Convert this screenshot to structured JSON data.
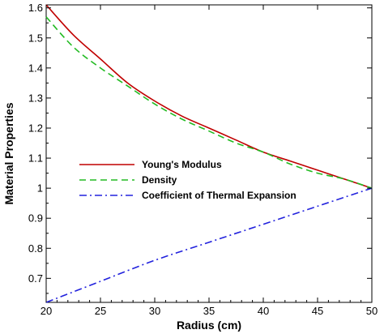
{
  "chart_data": {
    "type": "line",
    "title": "",
    "xlabel": "Radius (cm)",
    "ylabel": "Material Properties",
    "xlim": [
      20,
      50
    ],
    "ylim": [
      0.62,
      1.61
    ],
    "xticks": [
      20,
      25,
      30,
      35,
      40,
      45,
      50
    ],
    "xtick_labels": [
      "20",
      "25",
      "30",
      "35",
      "40",
      "45",
      "50"
    ],
    "yticks": [
      0.7,
      0.8,
      0.9,
      1.0,
      1.1,
      1.2,
      1.3,
      1.4,
      1.5,
      1.6
    ],
    "ytick_labels": [
      "0.7",
      "0.8",
      "0.9",
      "1",
      "1.1",
      "1.2",
      "1.3",
      "1.4",
      "1.5",
      "1.6"
    ],
    "grid": false,
    "legend_position": "center-left",
    "series": [
      {
        "name": "Young's Modulus",
        "color": "#c00000",
        "dash": "solid",
        "x": [
          20,
          22.5,
          25,
          27.5,
          30,
          32.5,
          35,
          37.5,
          40,
          42.5,
          45,
          47.5,
          50
        ],
        "y": [
          1.61,
          1.51,
          1.43,
          1.35,
          1.29,
          1.24,
          1.2,
          1.16,
          1.12,
          1.09,
          1.06,
          1.03,
          1.0
        ]
      },
      {
        "name": "Density",
        "color": "#22bb22",
        "dash": "dashed",
        "x": [
          20,
          22.5,
          25,
          27.5,
          30,
          32.5,
          35,
          37.5,
          40,
          42.5,
          45,
          47.5,
          50
        ],
        "y": [
          1.57,
          1.47,
          1.4,
          1.34,
          1.28,
          1.23,
          1.19,
          1.15,
          1.12,
          1.08,
          1.05,
          1.03,
          1.0
        ]
      },
      {
        "name": "Coefficient of Thermal Expansion",
        "color": "#2222dd",
        "dash": "dashdot",
        "x": [
          20,
          25,
          30,
          35,
          40,
          45,
          50
        ],
        "y": [
          0.62,
          0.69,
          0.76,
          0.82,
          0.88,
          0.94,
          1.0
        ]
      }
    ]
  }
}
